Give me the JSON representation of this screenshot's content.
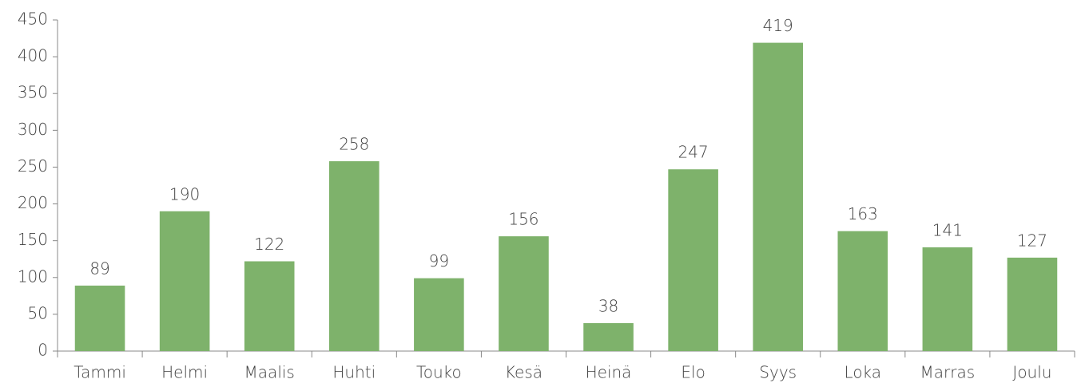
{
  "chart_data": {
    "type": "bar",
    "categories": [
      "Tammi",
      "Helmi",
      "Maalis",
      "Huhti",
      "Touko",
      "Kesä",
      "Heinä",
      "Elo",
      "Syys",
      "Loka",
      "Marras",
      "Joulu"
    ],
    "values": [
      89,
      190,
      122,
      258,
      99,
      156,
      38,
      247,
      419,
      163,
      141,
      127
    ],
    "color": "#7eb26b",
    "ylim": [
      0,
      450
    ],
    "yticks": [
      0,
      50,
      100,
      150,
      200,
      250,
      300,
      350,
      400,
      450
    ],
    "grid": false
  }
}
